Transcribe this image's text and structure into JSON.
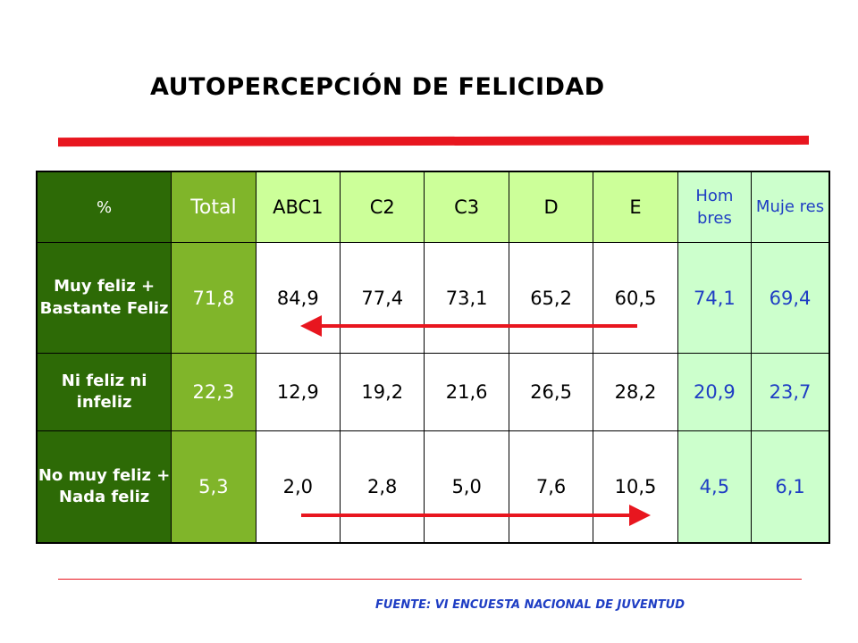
{
  "title": "AUTOPERCEPCIÓN DE FELICIDAD",
  "table": {
    "headers": [
      "%",
      "Total",
      "ABC1",
      "C2",
      "C3",
      "D",
      "E",
      "Hom bres",
      "Muje res"
    ],
    "rows": [
      {
        "label": "Muy feliz + Bastante Feliz",
        "values": [
          "71,8",
          "84,9",
          "77,4",
          "73,1",
          "65,2",
          "60,5",
          "74,1",
          "69,4"
        ]
      },
      {
        "label": "Ni feliz ni infeliz",
        "values": [
          "22,3",
          "12,9",
          "19,2",
          "21,6",
          "26,5",
          "28,2",
          "20,9",
          "23,7"
        ]
      },
      {
        "label": "No muy feliz + Nada feliz",
        "values": [
          "5,3",
          "2,0",
          "2,8",
          "5,0",
          "7,6",
          "10,5",
          "4,5",
          "6,1"
        ]
      }
    ]
  },
  "source": "FUENTE: VI ENCUESTA NACIONAL DE JUVENTUD",
  "colors": {
    "dark_green": "#2d6a06",
    "mid_green": "#80b52a",
    "light_green": "#ccff99",
    "pale_green": "#ccffcc",
    "red": "#e8161f",
    "blue": "#1f3ec4"
  }
}
